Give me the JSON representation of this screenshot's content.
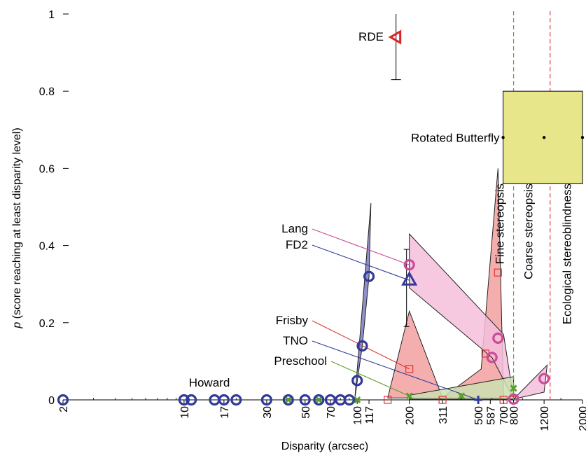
{
  "chart_data": {
    "type": "scatter",
    "xlabel": "Disparity (arcsec)",
    "ylabel_italic": "p",
    "ylabel": "(score reaching at least disparity level)",
    "xscale": "log",
    "xlim": [
      2,
      2000
    ],
    "ylim": [
      0,
      1
    ],
    "x_ticks": [
      2,
      10,
      17,
      30,
      50,
      70,
      100,
      117,
      200,
      311,
      500,
      587,
      700,
      800,
      1200,
      2000
    ],
    "y_ticks": [
      {
        "value": 0,
        "label": "0"
      },
      {
        "value": 0.2,
        "label": "0.2"
      },
      {
        "value": 0.4,
        "label": "0.4"
      },
      {
        "value": 0.6,
        "label": "0.6"
      },
      {
        "value": 0.8,
        "label": "0.8"
      },
      {
        "value": 1,
        "label": "1"
      }
    ],
    "thresholds": [
      {
        "x": 800,
        "label": "Fine stereopsis",
        "color": "#55aa33"
      },
      {
        "x": 1300,
        "label": "Coarse stereopsis",
        "color": "#e04040"
      },
      {
        "label": "Ecological stereoblindness"
      }
    ],
    "series": [
      {
        "name": "Howard",
        "marker": "circle",
        "color": "#2f3a9a",
        "fill": "#4a4aa0",
        "points": [
          [
            2,
            0
          ],
          [
            10,
            0
          ],
          [
            11,
            0
          ],
          [
            15,
            0
          ],
          [
            17,
            0
          ],
          [
            20,
            0
          ],
          [
            30,
            0
          ],
          [
            40,
            0
          ],
          [
            50,
            0
          ],
          [
            60,
            0
          ],
          [
            70,
            0
          ],
          [
            80,
            0
          ],
          [
            90,
            0
          ],
          [
            100,
            0.05
          ],
          [
            107,
            0.14
          ],
          [
            117,
            0.32
          ]
        ],
        "band": [
          [
            97,
            0.005
          ],
          [
            120,
            0.51
          ],
          [
            117,
            0.32
          ],
          [
            107,
            0.14
          ],
          [
            97,
            0.005
          ]
        ]
      },
      {
        "name": "FD2",
        "marker": "triangle",
        "color": "#2f3a9a",
        "points": [
          [
            200,
            0.31
          ]
        ],
        "label_at": [
          200,
          0.4
        ]
      },
      {
        "name": "Lang",
        "marker": "circle",
        "color": "#cc4c99",
        "fill": "#f4c0dc",
        "points": [
          [
            200,
            0.35
          ],
          [
            600,
            0.11
          ],
          [
            650,
            0.16
          ],
          [
            800,
            0.002
          ],
          [
            1200,
            0.055
          ]
        ],
        "band": [
          [
            200,
            0.43
          ],
          [
            700,
            0.17
          ],
          [
            800,
            0.002
          ],
          [
            600,
            0.11
          ],
          [
            200,
            0.29
          ]
        ],
        "band2": [
          [
            800,
            0.002
          ],
          [
            1250,
            0.09
          ],
          [
            1200,
            0.02
          ],
          [
            800,
            0.002
          ]
        ],
        "label_at": [
          200,
          0.45
        ]
      },
      {
        "name": "Frisby",
        "marker": "square",
        "color": "#dd3333",
        "fill": "#f2a0a0",
        "points": [
          [
            150,
            0
          ],
          [
            200,
            0.08
          ],
          [
            311,
            0
          ],
          [
            550,
            0.12
          ],
          [
            650,
            0.33
          ],
          [
            700,
            0
          ],
          [
            800,
            0
          ]
        ],
        "band": [
          [
            150,
            0.005
          ],
          [
            200,
            0.23
          ],
          [
            311,
            0.005
          ],
          [
            520,
            0.08
          ],
          [
            650,
            0.6
          ],
          [
            700,
            0.005
          ],
          [
            150,
            0.005
          ]
        ],
        "label_at": [
          200,
          0.2
        ]
      },
      {
        "name": "TNO",
        "marker": "plus",
        "color": "#2f3a9a",
        "points": [
          [
            500,
            0
          ]
        ],
        "label_at": [
          200,
          0.16
        ]
      },
      {
        "name": "Preschool",
        "marker": "x",
        "color": "#5aa02a",
        "fill": "#cbe0b2",
        "points": [
          [
            40,
            0
          ],
          [
            60,
            0
          ],
          [
            100,
            0
          ],
          [
            200,
            0.01
          ],
          [
            400,
            0.01
          ],
          [
            800,
            0.03
          ]
        ],
        "band": [
          [
            200,
            0.012
          ],
          [
            800,
            0.06
          ],
          [
            800,
            0.002
          ],
          [
            200,
            0.002
          ]
        ],
        "label_at": [
          200,
          0.12
        ]
      },
      {
        "name": "RDE",
        "marker": "triangle-left",
        "color": "#dd2222",
        "points": [
          [
            200,
            0.94
          ]
        ],
        "error": [
          0.83,
          1.0
        ]
      },
      {
        "name": "Rotated Butterfly",
        "marker": "dot",
        "color": "#000000",
        "fill": "#e8e68a",
        "points": [
          [
            800,
            0.68
          ],
          [
            1200,
            0.68
          ],
          [
            2000,
            0.68
          ]
        ],
        "box": {
          "x": [
            800,
            2000
          ],
          "y": [
            0.56,
            0.8
          ]
        }
      }
    ],
    "grid": false,
    "legend": "inline labels"
  }
}
